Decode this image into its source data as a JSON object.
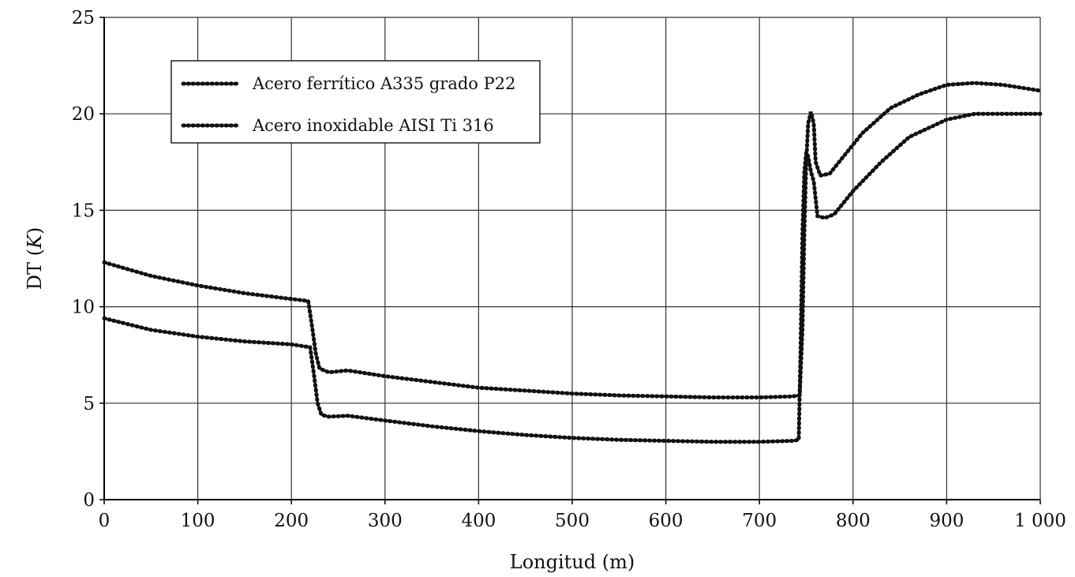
{
  "chart_data": {
    "type": "line",
    "title": "",
    "xlabel": "Longitud (m)",
    "ylabel_main": "DT (",
    "ylabel_var": "K",
    "ylabel_end": ")",
    "xlim": [
      0,
      1000
    ],
    "ylim": [
      0,
      25
    ],
    "grid": true,
    "legend_position": "top-left",
    "x_ticks": [
      "0",
      "100",
      "200",
      "300",
      "400",
      "500",
      "600",
      "700",
      "800",
      "900",
      "1 000"
    ],
    "y_ticks": [
      "0",
      "5",
      "10",
      "15",
      "20",
      "25"
    ],
    "series": [
      {
        "name": "Acero ferrítico A335 grado P22",
        "x": [
          0,
          50,
          100,
          150,
          200,
          218,
          222,
          226,
          230,
          240,
          260,
          300,
          350,
          400,
          450,
          500,
          550,
          600,
          650,
          700,
          735,
          743,
          746,
          748,
          750,
          752,
          755,
          758,
          760,
          765,
          775,
          790,
          810,
          840,
          870,
          900,
          930,
          960,
          1000
        ],
        "y": [
          12.3,
          11.6,
          11.1,
          10.7,
          10.4,
          10.3,
          9.0,
          7.6,
          6.8,
          6.6,
          6.7,
          6.4,
          6.1,
          5.8,
          5.65,
          5.5,
          5.4,
          5.35,
          5.3,
          5.3,
          5.35,
          5.4,
          9.0,
          14.0,
          17.5,
          19.5,
          20.1,
          19.5,
          17.5,
          16.8,
          16.9,
          17.8,
          19.0,
          20.3,
          21.0,
          21.5,
          21.6,
          21.5,
          21.2
        ]
      },
      {
        "name": "Acero inoxidable AISI Ti 316",
        "x": [
          0,
          50,
          100,
          150,
          200,
          220,
          224,
          228,
          232,
          240,
          260,
          300,
          350,
          400,
          450,
          500,
          550,
          600,
          650,
          700,
          735,
          742,
          744,
          746,
          748,
          750,
          752,
          755,
          758,
          762,
          770,
          780,
          800,
          830,
          860,
          900,
          930,
          960,
          1000
        ],
        "y": [
          9.4,
          8.8,
          8.45,
          8.2,
          8.05,
          7.9,
          6.5,
          5.0,
          4.4,
          4.3,
          4.35,
          4.1,
          3.8,
          3.55,
          3.35,
          3.2,
          3.1,
          3.05,
          3.0,
          3.0,
          3.05,
          3.1,
          8.0,
          14.0,
          17.0,
          18.0,
          17.8,
          17.0,
          16.5,
          14.7,
          14.6,
          14.8,
          16.0,
          17.5,
          18.8,
          19.7,
          20.0,
          20.0,
          20.0
        ]
      }
    ]
  }
}
